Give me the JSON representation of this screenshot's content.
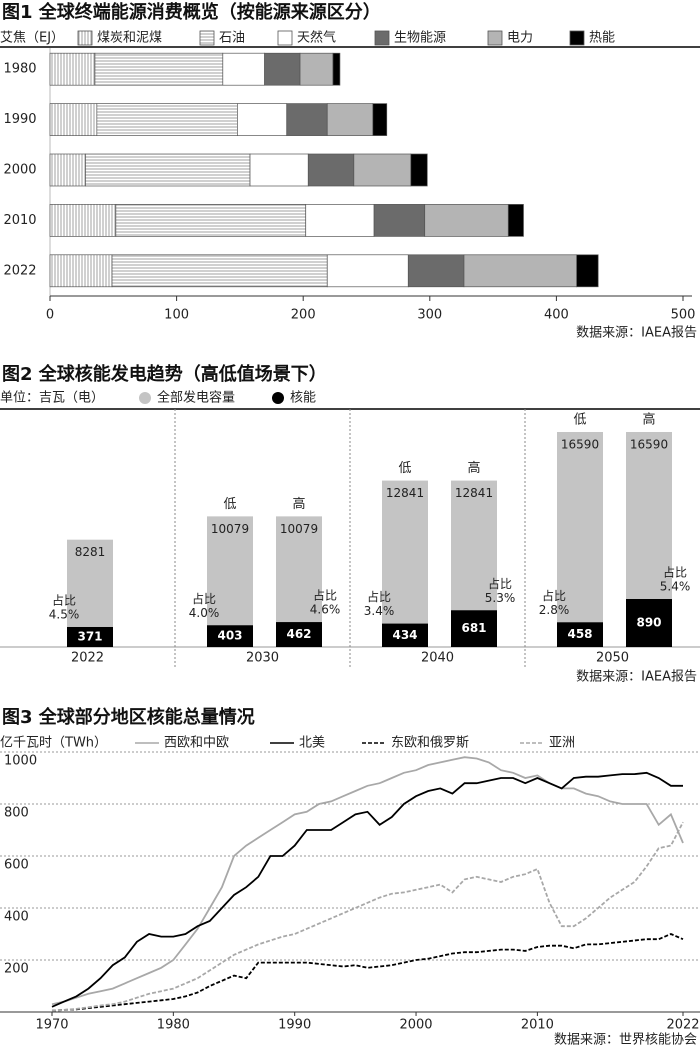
{
  "chart_data": [
    {
      "type": "bar",
      "orientation": "horizontal",
      "stacked": true,
      "title": "图1 全球终端能源消费概览（按能源来源区分）",
      "unit": "艾焦（EJ）",
      "categories": [
        "1980",
        "1990",
        "2000",
        "2010",
        "2022"
      ],
      "series": [
        {
          "name": "煤炭和泥煤",
          "color": "#ffffff",
          "pattern": "vertical-stripes",
          "values": [
            35.5,
            37,
            28,
            52,
            49
          ]
        },
        {
          "name": "石油",
          "color": "#ffffff",
          "pattern": "horizontal-stripes",
          "values": [
            101,
            111,
            130,
            150,
            170
          ]
        },
        {
          "name": "天然气",
          "color": "#ffffff",
          "values": [
            33,
            39,
            46,
            54,
            64
          ]
        },
        {
          "name": "生物能源",
          "color": "#6b6b6b",
          "values": [
            28,
            32,
            36,
            40,
            44
          ]
        },
        {
          "name": "电力",
          "color": "#b4b4b4",
          "values": [
            26,
            36,
            45,
            66,
            89
          ]
        },
        {
          "name": "热能",
          "color": "#000000",
          "values": [
            5.5,
            11,
            13,
            12,
            17
          ]
        }
      ],
      "xlim": [
        0,
        500
      ],
      "xticks": [
        0,
        100,
        200,
        300,
        400,
        500
      ],
      "source": "数据来源：IAEA报告"
    },
    {
      "type": "grouped-bar",
      "title": "图2 全球核能发电趋势（高低值场景下）",
      "unit": "单位：吉瓦（电）",
      "series": [
        {
          "name": "全部发电容量",
          "color": "#c4c4c4"
        },
        {
          "name": "核能",
          "color": "#000000"
        }
      ],
      "share_prefix": "占比",
      "groups": [
        {
          "category": "2022",
          "bars": [
            {
              "total": 8281,
              "nuclear": 371,
              "share": 4.5,
              "share_label": "4.5%"
            }
          ]
        },
        {
          "category": "2030",
          "bars": [
            {
              "scenario": "低",
              "total": 10079,
              "nuclear": 403,
              "share": 4.0,
              "share_label": "4.0%"
            },
            {
              "scenario": "高",
              "total": 10079,
              "nuclear": 462,
              "share": 4.6,
              "share_label": "4.6%"
            }
          ]
        },
        {
          "category": "2040",
          "bars": [
            {
              "scenario": "低",
              "total": 12841,
              "nuclear": 434,
              "share": 3.4,
              "share_label": "3.4%"
            },
            {
              "scenario": "高",
              "total": 12841,
              "nuclear": 681,
              "share": 5.3,
              "share_label": "5.3%"
            }
          ]
        },
        {
          "category": "2050",
          "bars": [
            {
              "scenario": "低",
              "total": 16590,
              "nuclear": 458,
              "share": 2.8,
              "share_label": "2.8%"
            },
            {
              "scenario": "高",
              "total": 16590,
              "nuclear": 890,
              "share": 5.4,
              "share_label": "5.4%"
            }
          ]
        }
      ],
      "source": "数据来源：IAEA报告"
    },
    {
      "type": "line",
      "title": "图3 全球部分地区核能总量情况",
      "unit": "亿千瓦时（TWh）",
      "x": [
        1970,
        1971,
        1972,
        1973,
        1974,
        1975,
        1976,
        1977,
        1978,
        1979,
        1980,
        1981,
        1982,
        1983,
        1984,
        1985,
        1986,
        1987,
        1988,
        1989,
        1990,
        1991,
        1992,
        1993,
        1994,
        1995,
        1996,
        1997,
        1998,
        1999,
        2000,
        2001,
        2002,
        2003,
        2004,
        2005,
        2006,
        2007,
        2008,
        2009,
        2010,
        2011,
        2012,
        2013,
        2014,
        2015,
        2016,
        2017,
        2018,
        2019,
        2020,
        2021,
        2022
      ],
      "series": [
        {
          "name": "西欧和中欧",
          "color": "#a8a8a8",
          "dashed": false,
          "values": [
            30,
            40,
            55,
            70,
            80,
            90,
            110,
            130,
            150,
            170,
            200,
            260,
            320,
            400,
            480,
            600,
            640,
            670,
            700,
            730,
            760,
            770,
            800,
            810,
            830,
            850,
            870,
            880,
            900,
            920,
            930,
            950,
            960,
            970,
            980,
            975,
            960,
            930,
            920,
            900,
            910,
            880,
            860,
            860,
            840,
            830,
            810,
            800,
            800,
            800,
            720,
            760,
            650
          ]
        },
        {
          "name": "北美",
          "color": "#000000",
          "dashed": false,
          "values": [
            20,
            40,
            60,
            90,
            130,
            180,
            210,
            270,
            300,
            290,
            290,
            300,
            330,
            350,
            400,
            450,
            480,
            520,
            600,
            600,
            640,
            700,
            700,
            700,
            730,
            760,
            770,
            720,
            750,
            800,
            830,
            850,
            860,
            840,
            880,
            880,
            890,
            900,
            900,
            880,
            900,
            880,
            860,
            900,
            905,
            905,
            910,
            915,
            915,
            920,
            900,
            870,
            870
          ]
        },
        {
          "name": "东欧和俄罗斯",
          "color": "#000000",
          "dashed": true,
          "values": [
            5,
            8,
            10,
            15,
            20,
            25,
            30,
            35,
            40,
            45,
            50,
            60,
            75,
            100,
            120,
            140,
            130,
            190,
            190,
            190,
            190,
            190,
            185,
            180,
            175,
            180,
            170,
            175,
            180,
            190,
            200,
            205,
            215,
            225,
            230,
            230,
            235,
            240,
            240,
            235,
            250,
            255,
            255,
            245,
            260,
            260,
            265,
            270,
            275,
            280,
            280,
            300,
            280
          ]
        },
        {
          "name": "亚洲",
          "color": "#a8a8a8",
          "dashed": true,
          "values": [
            5,
            8,
            12,
            18,
            25,
            30,
            40,
            55,
            70,
            80,
            90,
            110,
            130,
            160,
            190,
            220,
            240,
            260,
            275,
            290,
            300,
            320,
            340,
            360,
            380,
            400,
            420,
            440,
            455,
            460,
            470,
            480,
            490,
            460,
            510,
            520,
            510,
            500,
            520,
            530,
            550,
            420,
            330,
            330,
            360,
            400,
            440,
            470,
            500,
            560,
            630,
            640,
            730
          ]
        }
      ],
      "xlim": [
        1970,
        2022
      ],
      "xticks": [
        1970,
        1980,
        1990,
        2000,
        2010,
        2022
      ],
      "ylim": [
        0,
        1000
      ],
      "yticks": [
        200,
        400,
        600,
        800,
        1000
      ],
      "grid": true,
      "source": "数据来源：世界核能协会"
    }
  ]
}
